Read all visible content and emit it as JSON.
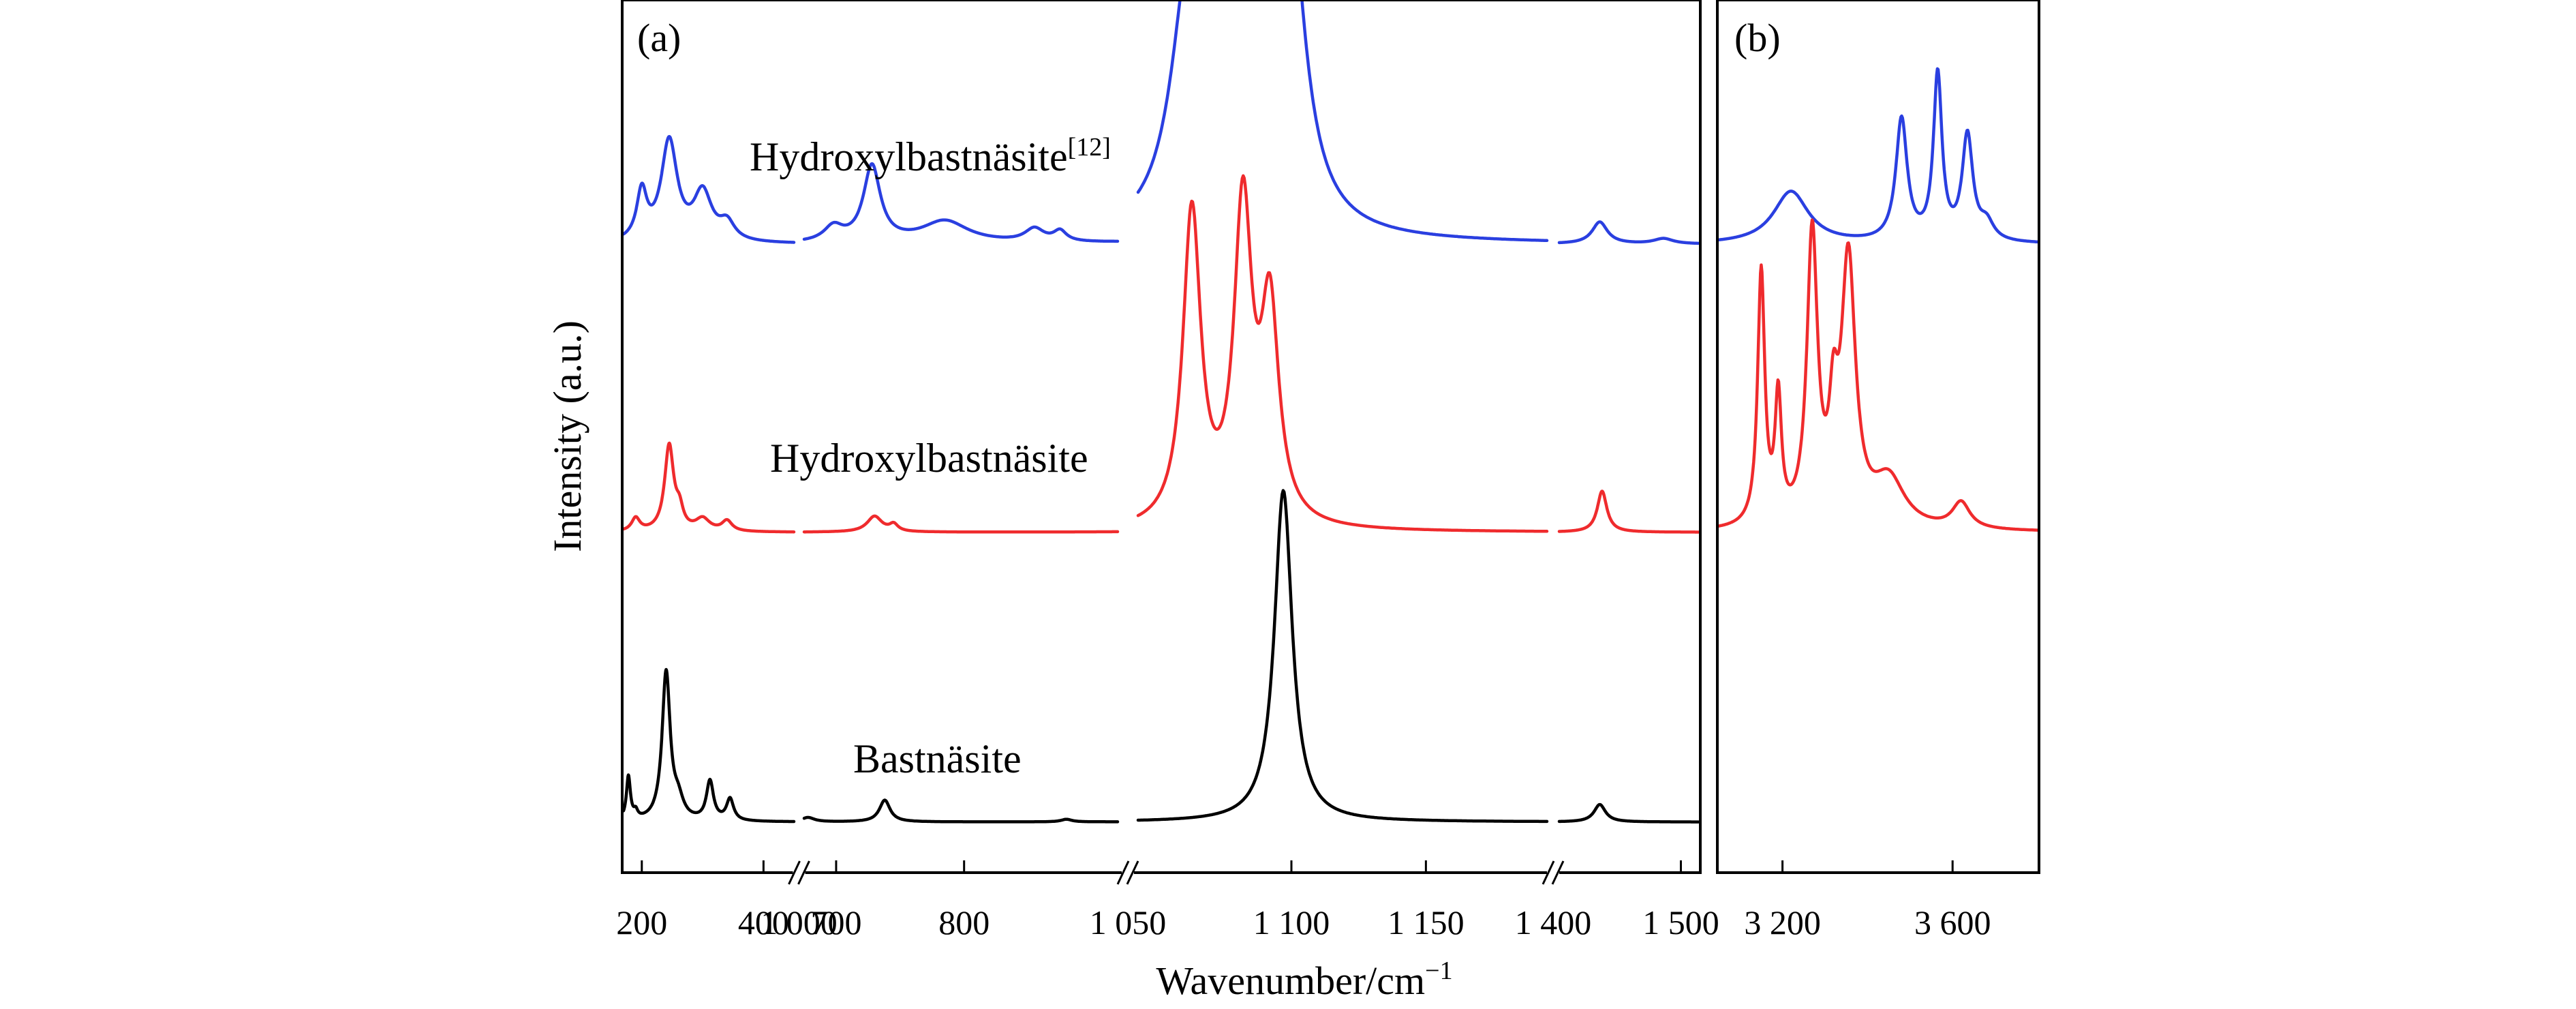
{
  "chart_data": {
    "type": "line",
    "title": "",
    "xlabel": "Wavenumber/cm",
    "xlabel_sup": "−1",
    "ylabel": "Intensity (a.u.)",
    "colors": {
      "Hydroxylbastnäsite[12]": "#2a3fe0",
      "Hydroxylbastnäsite": "#ef2b2d",
      "Bastnäsite": "#000000"
    },
    "panels": [
      {
        "label": "(a)",
        "broken_x_axis": true,
        "segments": [
          {
            "xlim": [
              170,
              450
            ],
            "ticks": [
              200,
              400
            ],
            "tick_labels": [
              "200",
              "400"
            ]
          },
          {
            "xlim": [
              675,
              920
            ],
            "ticks": [
              700,
              800
            ],
            "tick_labels": [
              "700",
              "800"
            ]
          },
          {
            "xlim": [
              1043,
              1195
            ],
            "ticks": [
              1100,
              1150
            ],
            "tick_labels": [
              "1 100",
              "1 150"
            ]
          },
          {
            "xlim": [
              1395,
              1515
            ],
            "ticks": [
              1500
            ],
            "tick_labels": [
              "1 500"
            ]
          }
        ],
        "break_labels": [
          {
            "after_segment": 1,
            "text": "1 000"
          },
          {
            "after_segment": 2,
            "text": "1 050"
          },
          {
            "after_segment": 3,
            "text": "1 400"
          }
        ]
      },
      {
        "label": "(b)",
        "xlim": [
          3050,
          3800
        ],
        "ticks": [
          3200,
          3600
        ],
        "tick_labels": [
          "3 200",
          "3 600"
        ]
      }
    ],
    "series": [
      {
        "name": "Hydroxylbastnäsite",
        "name_sup": "[12]",
        "color": "#2a3fe0",
        "offset": 0.72,
        "peaks": {
          "a": [
            [
              200,
              0.055,
              10
            ],
            [
              245,
              0.115,
              16
            ],
            [
              300,
              0.055,
              18
            ],
            [
              340,
              0.02,
              15
            ],
            [
              698,
              0.017,
              9
            ],
            [
              728,
              0.087,
              8
            ],
            [
              785,
              0.025,
              22
            ],
            [
              855,
              0.015,
              9
            ],
            [
              875,
              0.012,
              6
            ],
            [
              1062,
              0.27,
              8
            ],
            [
              1075,
              0.3,
              5
            ],
            [
              1083,
              0.27,
              6
            ],
            [
              1099,
              0.36,
              7
            ],
            [
              1430,
              0.025,
              8
            ],
            [
              1485,
              0.006,
              10
            ]
          ],
          "b": [
            [
              3220,
              0.06,
              50
            ],
            [
              3480,
              0.14,
              16
            ],
            [
              3565,
              0.19,
              12
            ],
            [
              3635,
              0.12,
              15
            ],
            [
              3680,
              0.02,
              20
            ]
          ]
        }
      },
      {
        "name": "Hydroxylbastnäsite",
        "color": "#ef2b2d",
        "offset": 0.39,
        "peaks": {
          "a": [
            [
              190,
              0.015,
              8
            ],
            [
              245,
              0.098,
              9
            ],
            [
              262,
              0.02,
              7
            ],
            [
              300,
              0.014,
              14
            ],
            [
              340,
              0.012,
              10
            ],
            [
              730,
              0.018,
              7
            ],
            [
              745,
              0.008,
              4
            ],
            [
              1063,
              0.36,
              4
            ],
            [
              1082,
              0.36,
              4
            ],
            [
              1092,
              0.24,
              4
            ],
            [
              1432,
              0.047,
              5
            ]
          ],
          "b": [
            [
              3150,
              0.29,
              10
            ],
            [
              3190,
              0.14,
              9
            ],
            [
              3270,
              0.33,
              15
            ],
            [
              3320,
              0.1,
              12
            ],
            [
              3355,
              0.3,
              20
            ],
            [
              3450,
              0.055,
              45
            ],
            [
              3620,
              0.03,
              25
            ]
          ]
        }
      },
      {
        "name": "Bastnäsite",
        "color": "#000000",
        "offset": 0.058,
        "peaks": {
          "a": [
            [
              178,
              0.05,
              4
            ],
            [
              190,
              0.008,
              4
            ],
            [
              240,
              0.17,
              8
            ],
            [
              260,
              0.02,
              10
            ],
            [
              312,
              0.045,
              7
            ],
            [
              345,
              0.025,
              7
            ],
            [
              678,
              0.005,
              6
            ],
            [
              738,
              0.025,
              5
            ],
            [
              880,
              0.003,
              5
            ],
            [
              1097,
              0.38,
              4
            ],
            [
              1430,
              0.02,
              6
            ]
          ]
        }
      }
    ]
  }
}
